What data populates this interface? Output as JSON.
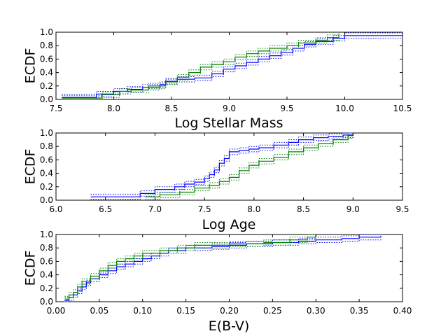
{
  "figure": {
    "background": "#ffffff"
  },
  "colors": {
    "series1": "#0000ff",
    "series2": "#008000"
  },
  "chart_data": [
    {
      "type": "line",
      "title": "",
      "xlabel": "Log Stellar Mass",
      "ylabel": "ECDF",
      "xlim": [
        7.5,
        10.5
      ],
      "ylim": [
        0,
        1
      ],
      "xticks": [
        "7.5",
        "8.0",
        "8.5",
        "9.0",
        "9.5",
        "10.0",
        "10.5"
      ],
      "yticks": [
        "0.0",
        "0.2",
        "0.4",
        "0.6",
        "0.8",
        "1.0"
      ],
      "series": [
        {
          "name": "blue",
          "color": "#0000ff",
          "style": "step",
          "band": 0.04,
          "x": [
            7.55,
            7.85,
            8.0,
            8.12,
            8.25,
            8.4,
            8.45,
            8.55,
            8.7,
            8.85,
            8.95,
            9.05,
            9.15,
            9.25,
            9.35,
            9.45,
            9.55,
            9.65,
            9.75,
            9.9,
            10.0,
            10.5
          ],
          "y": [
            0.03,
            0.08,
            0.12,
            0.15,
            0.18,
            0.22,
            0.27,
            0.3,
            0.32,
            0.38,
            0.45,
            0.5,
            0.55,
            0.6,
            0.65,
            0.7,
            0.76,
            0.82,
            0.86,
            0.91,
            0.95,
            0.95
          ]
        },
        {
          "name": "green",
          "color": "#008000",
          "style": "step",
          "band": 0.04,
          "x": [
            7.55,
            7.9,
            8.05,
            8.15,
            8.3,
            8.45,
            8.55,
            8.65,
            8.75,
            8.85,
            8.95,
            9.05,
            9.15,
            9.25,
            9.35,
            9.5,
            9.6,
            9.75,
            9.85,
            9.95
          ],
          "y": [
            0.02,
            0.07,
            0.12,
            0.14,
            0.2,
            0.26,
            0.33,
            0.4,
            0.48,
            0.52,
            0.56,
            0.63,
            0.68,
            0.72,
            0.76,
            0.8,
            0.84,
            0.88,
            0.92,
            0.97
          ]
        }
      ]
    },
    {
      "type": "line",
      "title": "",
      "xlabel": "Log Age",
      "ylabel": "ECDF",
      "xlim": [
        6.0,
        9.5
      ],
      "ylim": [
        0,
        1
      ],
      "xticks": [
        "6.0",
        "6.5",
        "7.0",
        "7.5",
        "8.0",
        "8.5",
        "9.0",
        "9.5"
      ],
      "yticks": [
        "0.0",
        "0.2",
        "0.4",
        "0.6",
        "0.8",
        "1.0"
      ],
      "series": [
        {
          "name": "blue",
          "color": "#0000ff",
          "style": "step",
          "band": 0.04,
          "x": [
            6.35,
            6.85,
            7.0,
            7.2,
            7.3,
            7.4,
            7.5,
            7.55,
            7.6,
            7.65,
            7.7,
            7.75,
            7.85,
            7.95,
            8.05,
            8.2,
            8.35,
            8.45,
            8.6,
            8.75,
            8.9,
            9.0
          ],
          "y": [
            0.05,
            0.1,
            0.16,
            0.2,
            0.24,
            0.27,
            0.32,
            0.38,
            0.45,
            0.55,
            0.62,
            0.72,
            0.74,
            0.76,
            0.78,
            0.82,
            0.86,
            0.9,
            0.93,
            0.95,
            0.97,
            0.98
          ]
        },
        {
          "name": "green",
          "color": "#008000",
          "style": "step",
          "band": 0.04,
          "x": [
            6.9,
            7.05,
            7.25,
            7.4,
            7.55,
            7.65,
            7.75,
            7.85,
            7.95,
            8.05,
            8.2,
            8.35,
            8.5,
            8.65,
            8.8,
            8.95,
            9.0
          ],
          "y": [
            0.05,
            0.08,
            0.12,
            0.18,
            0.22,
            0.28,
            0.34,
            0.44,
            0.52,
            0.58,
            0.64,
            0.72,
            0.78,
            0.84,
            0.9,
            0.96,
            0.98
          ]
        }
      ]
    },
    {
      "type": "line",
      "title": "",
      "xlabel": "E(B-V)",
      "ylabel": "ECDF",
      "xlim": [
        0.0,
        0.4
      ],
      "ylim": [
        0,
        1
      ],
      "xticks": [
        "0.00",
        "0.05",
        "0.10",
        "0.15",
        "0.20",
        "0.25",
        "0.30",
        "0.35",
        "0.40"
      ],
      "yticks": [
        "0.0",
        "0.2",
        "0.4",
        "0.6",
        "0.8",
        "1.0"
      ],
      "series": [
        {
          "name": "blue",
          "color": "#0000ff",
          "style": "step",
          "band": 0.04,
          "x": [
            0.01,
            0.015,
            0.02,
            0.025,
            0.03,
            0.035,
            0.04,
            0.05,
            0.06,
            0.07,
            0.08,
            0.09,
            0.1,
            0.11,
            0.12,
            0.13,
            0.15,
            0.18,
            0.2,
            0.22,
            0.25,
            0.28,
            0.3,
            0.33,
            0.35,
            0.375
          ],
          "y": [
            0.02,
            0.06,
            0.1,
            0.16,
            0.22,
            0.28,
            0.34,
            0.4,
            0.46,
            0.52,
            0.56,
            0.6,
            0.64,
            0.68,
            0.72,
            0.76,
            0.8,
            0.82,
            0.84,
            0.86,
            0.88,
            0.9,
            0.92,
            0.94,
            0.96,
            0.98
          ]
        },
        {
          "name": "green",
          "color": "#008000",
          "style": "step",
          "band": 0.04,
          "x": [
            0.01,
            0.015,
            0.02,
            0.025,
            0.03,
            0.04,
            0.05,
            0.06,
            0.07,
            0.08,
            0.09,
            0.1,
            0.12,
            0.14,
            0.16,
            0.2,
            0.24,
            0.27,
            0.29,
            0.3
          ],
          "y": [
            0.04,
            0.1,
            0.14,
            0.22,
            0.3,
            0.38,
            0.46,
            0.54,
            0.6,
            0.64,
            0.68,
            0.72,
            0.76,
            0.8,
            0.84,
            0.86,
            0.88,
            0.92,
            0.96,
            1.0
          ]
        }
      ]
    }
  ]
}
